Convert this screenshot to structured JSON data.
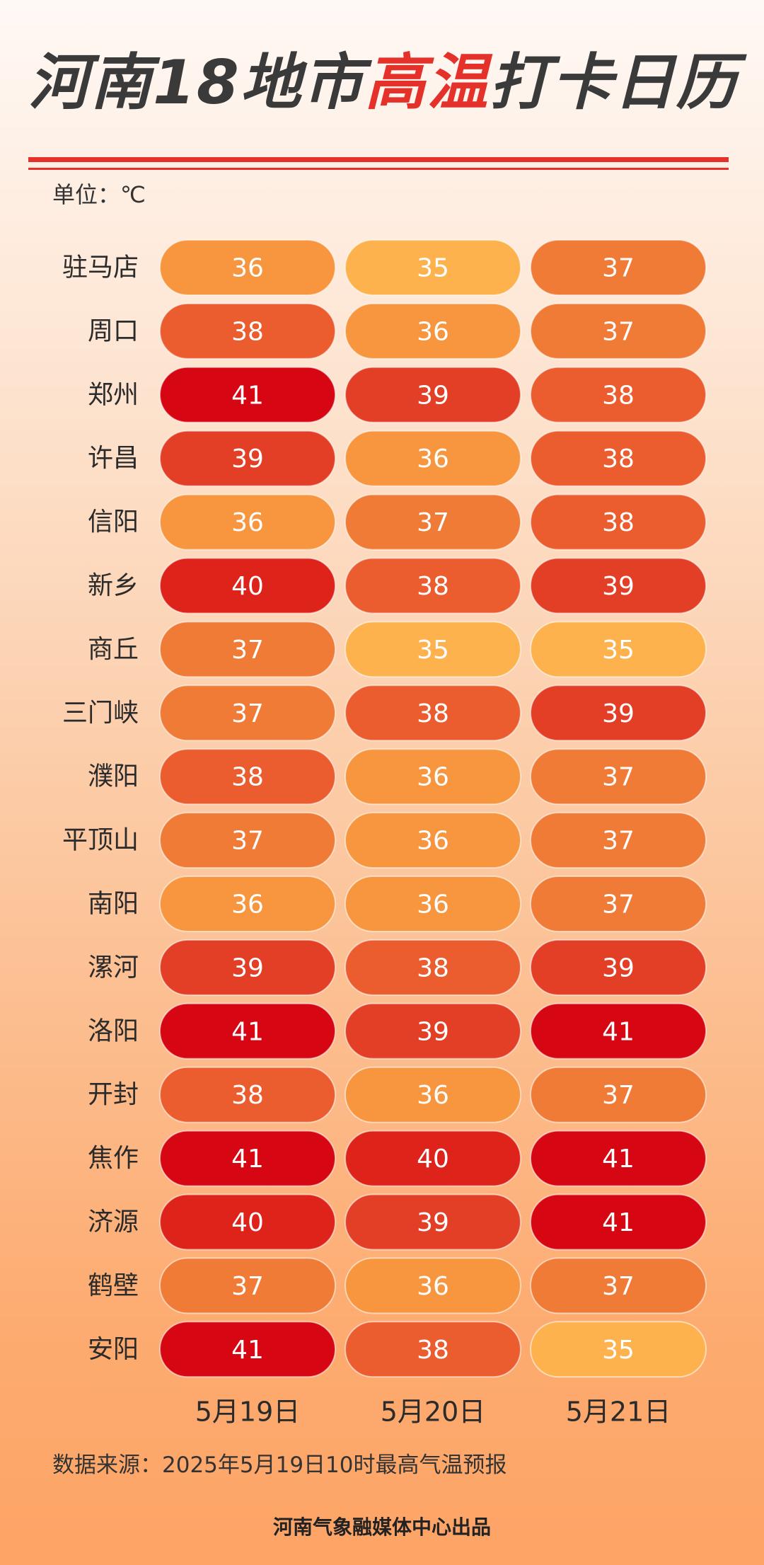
{
  "header": {
    "title_prefix": "河南18地市",
    "title_highlight": "高温",
    "title_suffix": "打卡日历",
    "unit": "单位：℃"
  },
  "chart_data": {
    "type": "table",
    "columns": [
      "5月19日",
      "5月20日",
      "5月21日"
    ],
    "rows": [
      "驻马店",
      "周口",
      "郑州",
      "许昌",
      "信阳",
      "新乡",
      "商丘",
      "三门峡",
      "濮阳",
      "平顶山",
      "南阳",
      "漯河",
      "洛阳",
      "开封",
      "焦作",
      "济源",
      "鹤壁",
      "安阳"
    ],
    "values": [
      [
        36,
        35,
        37
      ],
      [
        38,
        36,
        37
      ],
      [
        41,
        39,
        38
      ],
      [
        39,
        36,
        38
      ],
      [
        36,
        37,
        38
      ],
      [
        40,
        38,
        39
      ],
      [
        37,
        35,
        35
      ],
      [
        37,
        38,
        39
      ],
      [
        38,
        36,
        37
      ],
      [
        37,
        36,
        37
      ],
      [
        36,
        36,
        37
      ],
      [
        39,
        38,
        39
      ],
      [
        41,
        39,
        41
      ],
      [
        38,
        36,
        37
      ],
      [
        41,
        40,
        41
      ],
      [
        40,
        39,
        41
      ],
      [
        37,
        36,
        37
      ],
      [
        41,
        38,
        35
      ]
    ],
    "color_scale": {
      "35": "#fdb24d",
      "36": "#f7963f",
      "37": "#f07b36",
      "38": "#eb5d2f",
      "39": "#e33f26",
      "40": "#dd231a",
      "41": "#d60712"
    }
  },
  "footer": {
    "source": "数据来源：2025年5月19日10时最高气温预报",
    "credit": "河南气象融媒体中心出品"
  }
}
